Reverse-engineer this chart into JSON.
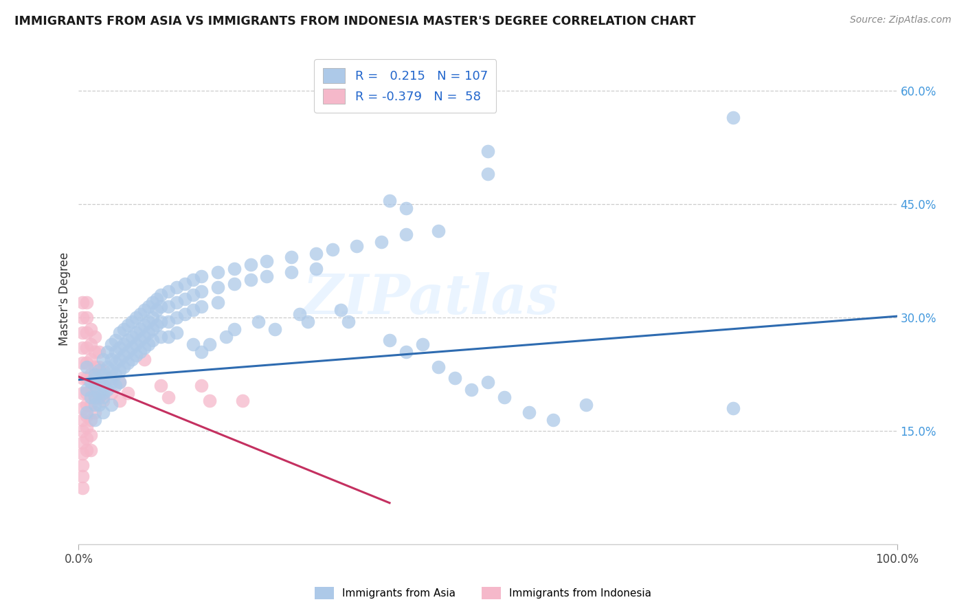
{
  "title": "IMMIGRANTS FROM ASIA VS IMMIGRANTS FROM INDONESIA MASTER'S DEGREE CORRELATION CHART",
  "source": "Source: ZipAtlas.com",
  "ylabel": "Master's Degree",
  "y_ticks": [
    0.15,
    0.3,
    0.45,
    0.6
  ],
  "y_tick_labels": [
    "15.0%",
    "30.0%",
    "45.0%",
    "60.0%"
  ],
  "legend_blue_R": "0.215",
  "legend_blue_N": "107",
  "legend_pink_R": "-0.379",
  "legend_pink_N": "58",
  "legend_label_blue": "Immigrants from Asia",
  "legend_label_pink": "Immigrants from Indonesia",
  "blue_color": "#adc9e8",
  "pink_color": "#f5b8ca",
  "blue_line_color": "#2e6bb0",
  "pink_line_color": "#c43060",
  "watermark": "ZIPatlas",
  "background_color": "#ffffff",
  "grid_color": "#cccccc",
  "blue_scatter": [
    [
      0.01,
      0.235
    ],
    [
      0.01,
      0.205
    ],
    [
      0.015,
      0.215
    ],
    [
      0.015,
      0.195
    ],
    [
      0.02,
      0.225
    ],
    [
      0.02,
      0.21
    ],
    [
      0.02,
      0.195
    ],
    [
      0.02,
      0.185
    ],
    [
      0.025,
      0.23
    ],
    [
      0.025,
      0.215
    ],
    [
      0.025,
      0.2
    ],
    [
      0.025,
      0.185
    ],
    [
      0.03,
      0.245
    ],
    [
      0.03,
      0.225
    ],
    [
      0.03,
      0.21
    ],
    [
      0.03,
      0.195
    ],
    [
      0.035,
      0.255
    ],
    [
      0.035,
      0.235
    ],
    [
      0.035,
      0.22
    ],
    [
      0.035,
      0.205
    ],
    [
      0.04,
      0.265
    ],
    [
      0.04,
      0.245
    ],
    [
      0.04,
      0.23
    ],
    [
      0.04,
      0.215
    ],
    [
      0.045,
      0.27
    ],
    [
      0.045,
      0.255
    ],
    [
      0.045,
      0.24
    ],
    [
      0.045,
      0.225
    ],
    [
      0.05,
      0.28
    ],
    [
      0.05,
      0.26
    ],
    [
      0.05,
      0.245
    ],
    [
      0.05,
      0.23
    ],
    [
      0.055,
      0.285
    ],
    [
      0.055,
      0.265
    ],
    [
      0.055,
      0.25
    ],
    [
      0.055,
      0.235
    ],
    [
      0.06,
      0.29
    ],
    [
      0.06,
      0.27
    ],
    [
      0.06,
      0.255
    ],
    [
      0.06,
      0.24
    ],
    [
      0.065,
      0.295
    ],
    [
      0.065,
      0.275
    ],
    [
      0.065,
      0.26
    ],
    [
      0.065,
      0.245
    ],
    [
      0.07,
      0.3
    ],
    [
      0.07,
      0.28
    ],
    [
      0.07,
      0.265
    ],
    [
      0.07,
      0.25
    ],
    [
      0.075,
      0.305
    ],
    [
      0.075,
      0.285
    ],
    [
      0.075,
      0.27
    ],
    [
      0.075,
      0.255
    ],
    [
      0.08,
      0.31
    ],
    [
      0.08,
      0.29
    ],
    [
      0.08,
      0.275
    ],
    [
      0.08,
      0.26
    ],
    [
      0.085,
      0.315
    ],
    [
      0.085,
      0.295
    ],
    [
      0.085,
      0.28
    ],
    [
      0.085,
      0.265
    ],
    [
      0.09,
      0.32
    ],
    [
      0.09,
      0.3
    ],
    [
      0.09,
      0.285
    ],
    [
      0.09,
      0.27
    ],
    [
      0.095,
      0.325
    ],
    [
      0.095,
      0.31
    ],
    [
      0.095,
      0.29
    ],
    [
      0.1,
      0.33
    ],
    [
      0.1,
      0.315
    ],
    [
      0.1,
      0.295
    ],
    [
      0.1,
      0.275
    ],
    [
      0.11,
      0.335
    ],
    [
      0.11,
      0.315
    ],
    [
      0.11,
      0.295
    ],
    [
      0.11,
      0.275
    ],
    [
      0.12,
      0.34
    ],
    [
      0.12,
      0.32
    ],
    [
      0.12,
      0.3
    ],
    [
      0.12,
      0.28
    ],
    [
      0.13,
      0.345
    ],
    [
      0.13,
      0.325
    ],
    [
      0.13,
      0.305
    ],
    [
      0.14,
      0.35
    ],
    [
      0.14,
      0.33
    ],
    [
      0.14,
      0.31
    ],
    [
      0.15,
      0.355
    ],
    [
      0.15,
      0.335
    ],
    [
      0.15,
      0.315
    ],
    [
      0.17,
      0.36
    ],
    [
      0.17,
      0.34
    ],
    [
      0.17,
      0.32
    ],
    [
      0.19,
      0.365
    ],
    [
      0.19,
      0.345
    ],
    [
      0.21,
      0.37
    ],
    [
      0.21,
      0.35
    ],
    [
      0.23,
      0.375
    ],
    [
      0.23,
      0.355
    ],
    [
      0.26,
      0.38
    ],
    [
      0.26,
      0.36
    ],
    [
      0.29,
      0.385
    ],
    [
      0.29,
      0.365
    ],
    [
      0.31,
      0.39
    ],
    [
      0.34,
      0.395
    ],
    [
      0.37,
      0.4
    ],
    [
      0.4,
      0.41
    ],
    [
      0.44,
      0.415
    ],
    [
      0.01,
      0.175
    ],
    [
      0.02,
      0.165
    ],
    [
      0.03,
      0.175
    ],
    [
      0.04,
      0.185
    ],
    [
      0.02,
      0.22
    ],
    [
      0.03,
      0.2
    ],
    [
      0.045,
      0.21
    ],
    [
      0.05,
      0.215
    ],
    [
      0.14,
      0.265
    ],
    [
      0.15,
      0.255
    ],
    [
      0.16,
      0.265
    ],
    [
      0.18,
      0.275
    ],
    [
      0.19,
      0.285
    ],
    [
      0.22,
      0.295
    ],
    [
      0.24,
      0.285
    ],
    [
      0.27,
      0.305
    ],
    [
      0.28,
      0.295
    ],
    [
      0.32,
      0.31
    ],
    [
      0.33,
      0.295
    ],
    [
      0.38,
      0.27
    ],
    [
      0.4,
      0.255
    ],
    [
      0.42,
      0.265
    ],
    [
      0.44,
      0.235
    ],
    [
      0.46,
      0.22
    ],
    [
      0.48,
      0.205
    ],
    [
      0.5,
      0.215
    ],
    [
      0.52,
      0.195
    ],
    [
      0.55,
      0.175
    ],
    [
      0.58,
      0.165
    ],
    [
      0.62,
      0.185
    ],
    [
      0.8,
      0.18
    ],
    [
      0.5,
      0.52
    ],
    [
      0.5,
      0.49
    ],
    [
      0.38,
      0.455
    ],
    [
      0.4,
      0.445
    ],
    [
      0.8,
      0.565
    ]
  ],
  "pink_scatter": [
    [
      0.005,
      0.32
    ],
    [
      0.005,
      0.3
    ],
    [
      0.005,
      0.28
    ],
    [
      0.005,
      0.26
    ],
    [
      0.005,
      0.24
    ],
    [
      0.005,
      0.22
    ],
    [
      0.005,
      0.2
    ],
    [
      0.005,
      0.18
    ],
    [
      0.005,
      0.165
    ],
    [
      0.005,
      0.15
    ],
    [
      0.005,
      0.135
    ],
    [
      0.005,
      0.12
    ],
    [
      0.005,
      0.105
    ],
    [
      0.005,
      0.09
    ],
    [
      0.005,
      0.075
    ],
    [
      0.01,
      0.32
    ],
    [
      0.01,
      0.3
    ],
    [
      0.01,
      0.28
    ],
    [
      0.01,
      0.26
    ],
    [
      0.01,
      0.24
    ],
    [
      0.01,
      0.22
    ],
    [
      0.01,
      0.2
    ],
    [
      0.01,
      0.185
    ],
    [
      0.01,
      0.17
    ],
    [
      0.01,
      0.155
    ],
    [
      0.01,
      0.14
    ],
    [
      0.01,
      0.125
    ],
    [
      0.015,
      0.285
    ],
    [
      0.015,
      0.265
    ],
    [
      0.015,
      0.245
    ],
    [
      0.015,
      0.225
    ],
    [
      0.015,
      0.205
    ],
    [
      0.015,
      0.185
    ],
    [
      0.015,
      0.165
    ],
    [
      0.015,
      0.145
    ],
    [
      0.015,
      0.125
    ],
    [
      0.02,
      0.275
    ],
    [
      0.02,
      0.255
    ],
    [
      0.02,
      0.235
    ],
    [
      0.02,
      0.215
    ],
    [
      0.02,
      0.195
    ],
    [
      0.02,
      0.175
    ],
    [
      0.025,
      0.255
    ],
    [
      0.025,
      0.235
    ],
    [
      0.025,
      0.215
    ],
    [
      0.025,
      0.195
    ],
    [
      0.03,
      0.23
    ],
    [
      0.03,
      0.21
    ],
    [
      0.03,
      0.19
    ],
    [
      0.04,
      0.22
    ],
    [
      0.04,
      0.2
    ],
    [
      0.05,
      0.215
    ],
    [
      0.05,
      0.19
    ],
    [
      0.06,
      0.2
    ],
    [
      0.08,
      0.245
    ],
    [
      0.1,
      0.21
    ],
    [
      0.11,
      0.195
    ],
    [
      0.15,
      0.21
    ],
    [
      0.16,
      0.19
    ],
    [
      0.2,
      0.19
    ]
  ],
  "xlim": [
    0.0,
    1.0
  ],
  "ylim": [
    0.0,
    0.65
  ],
  "blue_line_x": [
    0.0,
    1.0
  ],
  "blue_line_y": [
    0.218,
    0.302
  ],
  "pink_line_x": [
    0.0,
    0.38
  ],
  "pink_line_y": [
    0.222,
    0.055
  ]
}
